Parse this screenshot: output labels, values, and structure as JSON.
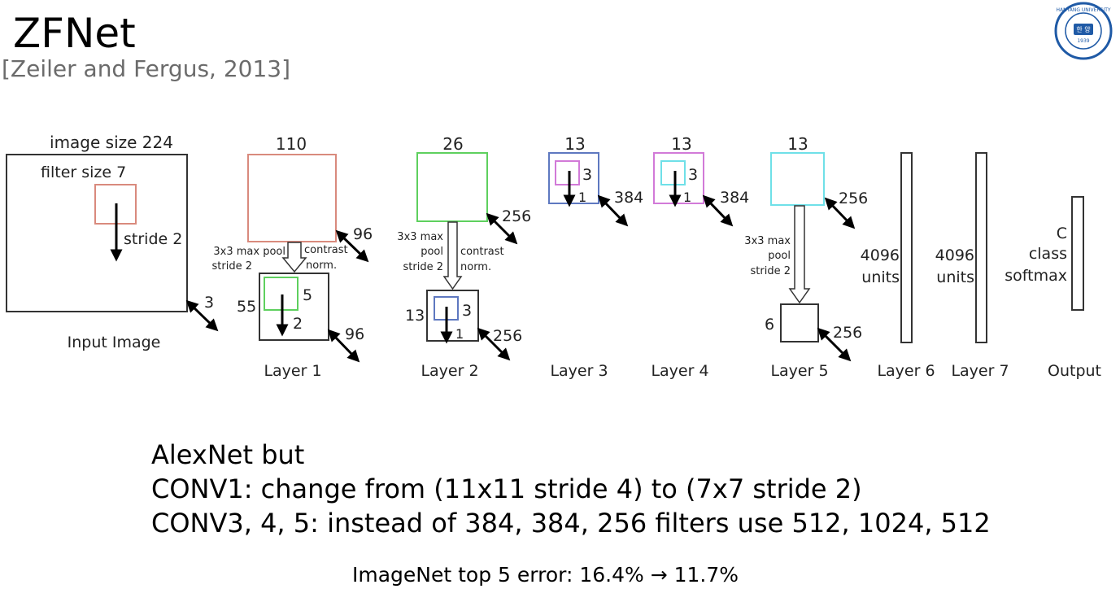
{
  "slide": {
    "title": "ZFNet",
    "subtitle": "[Zeiler and Fergus, 2013]",
    "logo": {
      "name": "hanyang-university-seal",
      "text": "HANYANG UNIVERSITY",
      "year": "1939",
      "color": "#1f5aa6"
    },
    "bullets": [
      "AlexNet but",
      "CONV1: change from (11x11 stride 4) to (7x7 stride 2)",
      "CONV3, 4, 5: instead of 384, 384, 256 filters use 512, 1024, 512"
    ],
    "footer": "ImageNet top 5 error: 16.4% → 11.7%"
  },
  "diagram": {
    "colors": {
      "red": "#d98a7d",
      "green": "#5ed05e",
      "blue": "#5e78c0",
      "magenta": "#d27ad8",
      "cyan": "#6fe0e8"
    },
    "input": {
      "size_label": "image size 224",
      "filter_label": "filter size 7",
      "stride_label": "stride 2",
      "depth": "3",
      "caption": "Input Image"
    },
    "layer1": {
      "size": "110",
      "depth_top": "96",
      "pool_label": [
        "3x3 max pool",
        "stride 2"
      ],
      "norm_label": [
        "contrast",
        "norm."
      ],
      "small_size": "55",
      "filter": "5",
      "stride": "2",
      "depth_bottom": "96",
      "caption": "Layer 1"
    },
    "layer2": {
      "size": "26",
      "depth_top": "256",
      "pool_label": [
        "3x3 max",
        "pool",
        "stride 2"
      ],
      "norm_label": [
        "contrast",
        "norm."
      ],
      "small_size": "13",
      "filter": "3",
      "stride": "1",
      "depth_bottom": "256",
      "caption": "Layer 2"
    },
    "layer3": {
      "size": "13",
      "filter": "3",
      "stride": "1",
      "depth": "384",
      "caption": "Layer 3"
    },
    "layer4": {
      "size": "13",
      "filter": "3",
      "stride": "1",
      "depth": "384",
      "caption": "Layer 4"
    },
    "layer5": {
      "size": "13",
      "depth_top": "256",
      "pool_label": [
        "3x3 max",
        "pool",
        "stride 2"
      ],
      "small_size": "6",
      "depth_bottom": "256",
      "caption": "Layer 5"
    },
    "layer6": {
      "units": [
        "4096",
        "units"
      ],
      "caption": "Layer 6"
    },
    "layer7": {
      "units": [
        "4096",
        "units"
      ],
      "caption": "Layer 7"
    },
    "output": {
      "label": [
        "C",
        "class",
        "softmax"
      ],
      "caption": "Output"
    }
  }
}
